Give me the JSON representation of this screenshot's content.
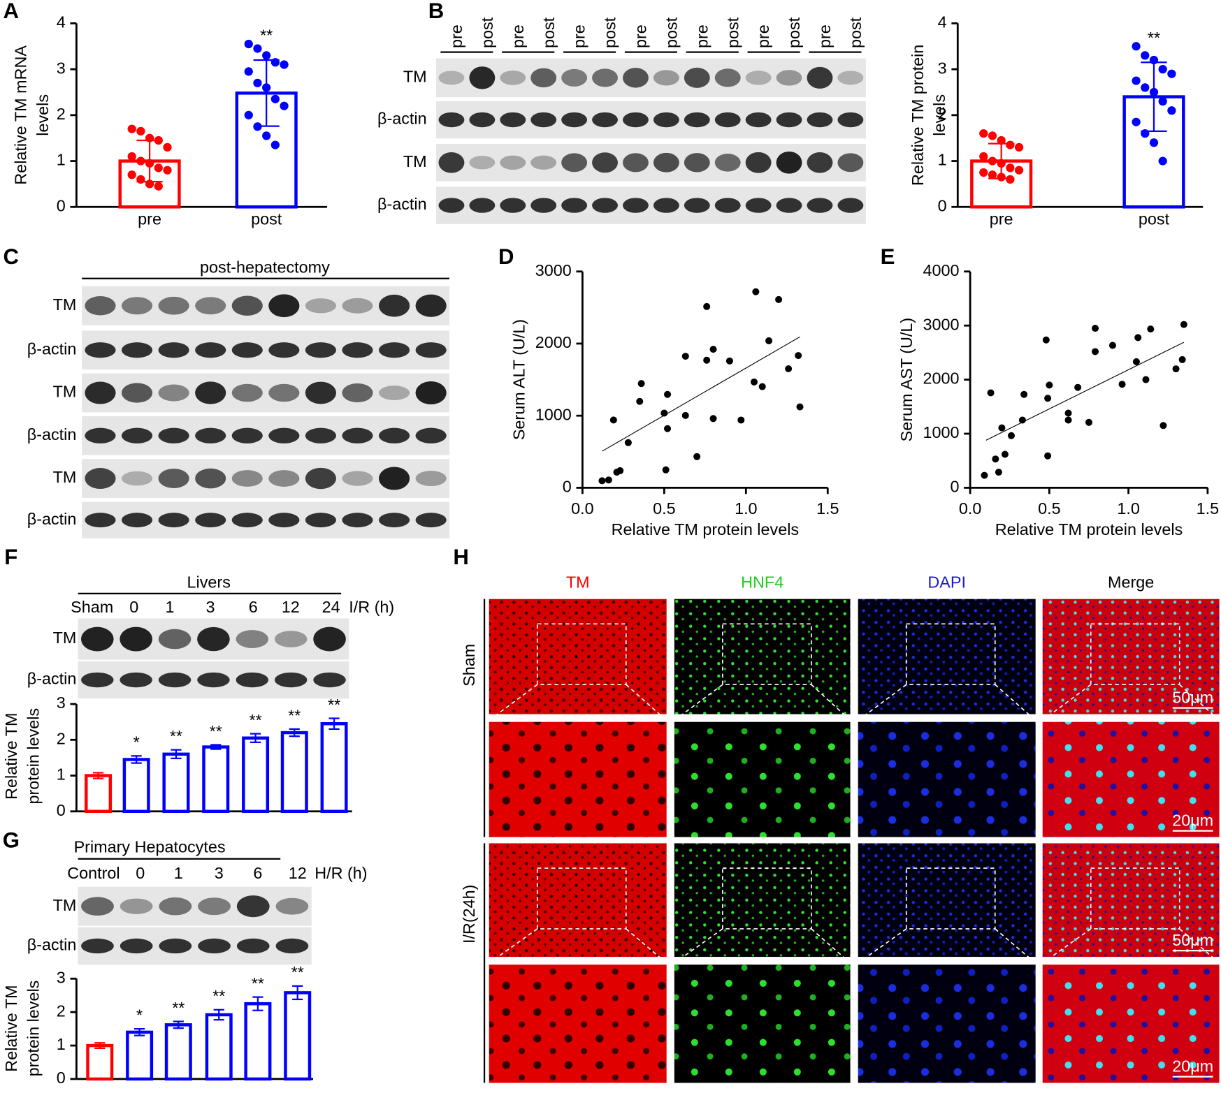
{
  "chart_data": [
    {
      "type": "bar",
      "y_label": [
        "Relative TM mRNA",
        "levels"
      ],
      "categories": [
        "pre",
        "post"
      ],
      "values": [
        1.0,
        2.48
      ],
      "errors": [
        0.45,
        0.72
      ],
      "colors": [
        "#ff0000",
        "#0000ff"
      ],
      "points": [
        [
          1.7,
          1.65,
          1.5,
          1.45,
          1.3,
          1.1,
          1.0,
          0.95,
          0.85,
          0.8,
          0.7,
          0.6,
          0.5,
          0.45
        ],
        [
          3.55,
          3.45,
          3.3,
          3.15,
          3.1,
          2.95,
          2.7,
          2.6,
          2.35,
          2.2,
          2.0,
          1.75,
          1.55,
          1.35
        ]
      ],
      "annotations": [
        null,
        "**"
      ],
      "ylim": [
        0,
        4
      ],
      "yticks": [
        0,
        1,
        2,
        3,
        4
      ]
    },
    {
      "type": "bar",
      "y_label": [
        "Relative TM protein",
        "levels"
      ],
      "categories": [
        "pre",
        "post"
      ],
      "values": [
        1.0,
        2.4
      ],
      "errors": [
        0.38,
        0.75
      ],
      "colors": [
        "#ff0000",
        "#0000ff"
      ],
      "points": [
        [
          1.6,
          1.55,
          1.45,
          1.35,
          1.3,
          1.1,
          1.0,
          0.95,
          0.85,
          0.8,
          0.75,
          0.7,
          0.65,
          0.6
        ],
        [
          3.5,
          3.3,
          3.2,
          3.0,
          2.9,
          2.75,
          2.6,
          2.5,
          2.3,
          2.1,
          1.85,
          1.6,
          1.4,
          1.0
        ]
      ],
      "annotations": [
        null,
        "**"
      ],
      "ylim": [
        0,
        4
      ],
      "yticks": [
        0,
        1,
        2,
        3,
        4
      ]
    },
    {
      "type": "scatter",
      "x_label": "Relative TM protein levels",
      "y_label": "Serum ALT (U/L)",
      "x": [
        0.12,
        0.16,
        0.19,
        0.21,
        0.23,
        0.28,
        0.36,
        0.35,
        0.5,
        0.52,
        0.52,
        0.51,
        0.63,
        0.63,
        0.7,
        0.76,
        0.76,
        0.8,
        0.8,
        0.9,
        0.97,
        1.06,
        1.05,
        1.1,
        1.14,
        1.2,
        1.26,
        1.32,
        1.33
      ],
      "y": [
        97,
        108,
        940,
        216,
        237,
        626,
        1446,
        1198,
        1036,
        1295,
        820,
        248,
        1003,
        1824,
        432,
        2514,
        1770,
        1921,
        960,
        1759,
        939,
        2719,
        1467,
        1403,
        2039,
        2611,
        1651,
        1834,
        1122
      ],
      "trendline": {
        "x": [
          0.12,
          1.33
        ],
        "y": [
          507,
          2093
        ]
      },
      "xlim": [
        0,
        1.5
      ],
      "xticks": [
        {
          "value": 0,
          "label": "0.0"
        },
        0.5,
        {
          "value": 1,
          "label": "1.0"
        },
        1.5
      ],
      "ylim": [
        0,
        3000
      ],
      "yticks": [
        0,
        1000,
        2000,
        3000
      ]
    },
    {
      "type": "scatter",
      "x_label": "Relative TM protein levels",
      "y_label": "Serum AST (U/L)",
      "x": [
        0.09,
        0.13,
        0.16,
        0.18,
        0.2,
        0.22,
        0.26,
        0.33,
        0.34,
        0.48,
        0.49,
        0.5,
        0.49,
        0.62,
        0.62,
        0.68,
        0.75,
        0.79,
        0.79,
        0.9,
        0.96,
        1.05,
        1.06,
        1.11,
        1.14,
        1.22,
        1.3,
        1.34,
        1.35
      ],
      "y": [
        230,
        1756,
        532,
        288,
        1108,
        619,
        964,
        1252,
        1727,
        2734,
        1655,
        1899,
        590,
        1381,
        1252,
        1856,
        1209,
        2518,
        2950,
        2633,
        1914,
        2331,
        2777,
        2000,
        2936,
        1151,
        2200,
        2370,
        3020
      ],
      "trendline": {
        "x": [
          0.1,
          1.35
        ],
        "y": [
          878,
          2691
        ]
      },
      "xlim": [
        0,
        1.5
      ],
      "xticks": [
        {
          "value": 0,
          "label": "0.0"
        },
        0.5,
        {
          "value": 1,
          "label": "1.0"
        },
        1.5
      ],
      "ylim": [
        0,
        4000
      ],
      "yticks": [
        0,
        1000,
        2000,
        3000,
        4000
      ]
    },
    {
      "type": "bar",
      "y_label": [
        "Relative TM",
        "protein levels"
      ],
      "values": [
        1.0,
        1.45,
        1.6,
        1.8,
        2.05,
        2.2,
        2.45
      ],
      "errors": [
        0.08,
        0.1,
        0.12,
        0.06,
        0.12,
        0.1,
        0.15
      ],
      "colors": [
        "#ff0000",
        "#0000ff",
        "#0000ff",
        "#0000ff",
        "#0000ff",
        "#0000ff",
        "#0000ff"
      ],
      "annotations": [
        null,
        "*",
        "**",
        "**",
        "**",
        "**",
        "**"
      ],
      "ylim": [
        0,
        3
      ],
      "yticks": [
        0,
        1,
        2,
        3
      ]
    },
    {
      "type": "bar",
      "y_label": [
        "Relative TM",
        "protein levels"
      ],
      "values": [
        1.0,
        1.4,
        1.62,
        1.92,
        2.25,
        2.58
      ],
      "errors": [
        0.08,
        0.1,
        0.1,
        0.15,
        0.2,
        0.2
      ],
      "colors": [
        "#ff0000",
        "#0000ff",
        "#0000ff",
        "#0000ff",
        "#0000ff",
        "#0000ff"
      ],
      "annotations": [
        null,
        "*",
        "**",
        "**",
        "**",
        "**"
      ],
      "ylim": [
        0,
        3
      ],
      "yticks": [
        0,
        1,
        2,
        3
      ]
    }
  ],
  "figure": {
    "panels": [
      "A",
      "B",
      "C",
      "D",
      "E",
      "F",
      "G",
      "H"
    ],
    "blot_b": {
      "lanes": [
        "pre",
        "post",
        "pre",
        "post",
        "pre",
        "post",
        "pre",
        "post",
        "pre",
        "post",
        "pre",
        "post",
        "pre",
        "post"
      ],
      "rows": [
        "TM",
        "β-actin",
        "TM",
        "β-actin"
      ]
    },
    "blot_c": {
      "title": "post-hepatectomy",
      "rows": [
        "TM",
        "β-actin",
        "TM",
        "β-actin",
        "TM",
        "β-actin"
      ]
    },
    "blot_f": {
      "title": "Livers",
      "lanes": [
        "Sham",
        "0",
        "1",
        "3",
        "6",
        "12",
        "24"
      ],
      "unit": "I/R (h)",
      "rows": [
        "TM",
        "β-actin"
      ]
    },
    "blot_g": {
      "title": "Primary Hepatocytes",
      "lanes": [
        "Control",
        "0",
        "1",
        "3",
        "6",
        "12"
      ],
      "unit": "H/R (h)",
      "rows": [
        "TM",
        "β-actin"
      ]
    },
    "panel_h": {
      "columns": [
        "TM",
        "HNF4",
        "DAPI",
        "Merge"
      ],
      "rows": [
        "Sham",
        "I/R(24h)"
      ],
      "scale_bars": [
        "50μm",
        "20μm",
        "50μm",
        "20μm"
      ]
    }
  }
}
